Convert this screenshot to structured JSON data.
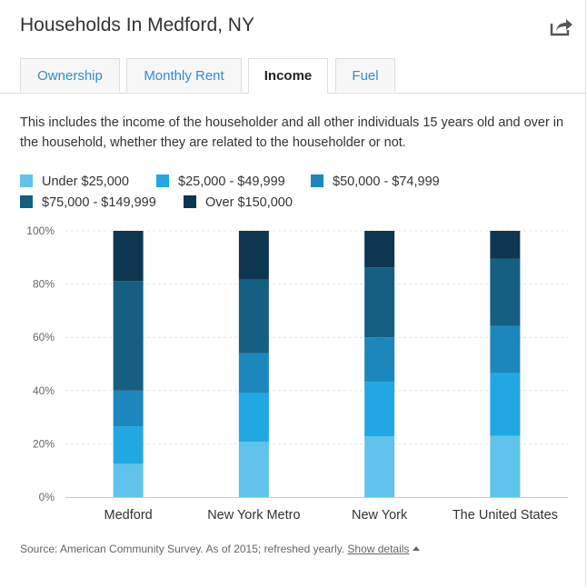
{
  "header": {
    "title": "Households In Medford, NY",
    "share_icon": "share-icon"
  },
  "tabs": [
    {
      "label": "Ownership",
      "active": false
    },
    {
      "label": "Monthly Rent",
      "active": false
    },
    {
      "label": "Income",
      "active": true
    },
    {
      "label": "Fuel",
      "active": false
    }
  ],
  "description": "This includes the income of the householder and all other individuals 15 years old and over in the household, whether they are related to the householder or not.",
  "colors": {
    "under_25k": "#60c3ec",
    "k25_49": "#21a8e2",
    "k50_74": "#1b87bd",
    "k75_149": "#155f82",
    "over_150k": "#0d3650",
    "grid": "#e4e4e4",
    "axis": "#cccccc",
    "accent": "#2b8fcf"
  },
  "chart_data": {
    "type": "bar",
    "stacked": true,
    "categories": [
      "Medford",
      "New York Metro",
      "New York",
      "The United States"
    ],
    "series": [
      {
        "name": "Under $25,000",
        "values": [
          12.5,
          20.8,
          22.8,
          23.0
        ]
      },
      {
        "name": "$25,000 - $49,999",
        "values": [
          14.0,
          18.2,
          20.5,
          23.5
        ]
      },
      {
        "name": "$50,000 - $74,999",
        "values": [
          13.5,
          15.0,
          16.7,
          17.8
        ]
      },
      {
        "name": "$75,000 - $149,999",
        "values": [
          41.2,
          27.7,
          26.3,
          25.3
        ]
      },
      {
        "name": "Over $150,000",
        "values": [
          18.8,
          18.3,
          13.7,
          10.4
        ]
      }
    ],
    "y_ticks": [
      "0%",
      "20%",
      "40%",
      "60%",
      "80%",
      "100%"
    ],
    "ylim": [
      0,
      100
    ],
    "grid": true,
    "legend_position": "top"
  },
  "source": {
    "text": "Source: American Community Survey. As of 2015; refreshed yearly.",
    "link": "Show details",
    "link_icon": "caret-up-icon"
  }
}
